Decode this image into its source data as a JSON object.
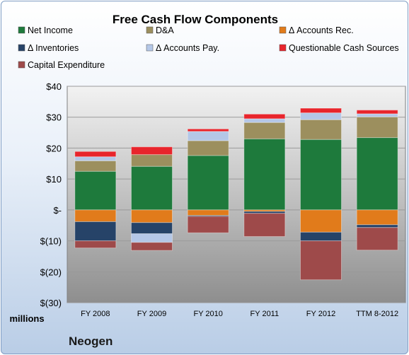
{
  "chart_data": {
    "type": "bar",
    "stacked": true,
    "title": "Free Cash Flow Components",
    "ylabel": "millions",
    "footer": "Neogen",
    "ylim": [
      -30,
      40
    ],
    "yticks": [
      40,
      30,
      20,
      10,
      0,
      -10,
      -20,
      -30
    ],
    "ytick_labels": [
      "$40",
      "$30",
      "$20",
      "$10",
      "$-",
      "$(10)",
      "$(20)",
      "$(30)"
    ],
    "categories": [
      "FY 2008",
      "FY 2009",
      "FY 2010",
      "FY 2011",
      "FY 2012",
      "TTM 8-2012"
    ],
    "legend_position": "top",
    "grid": true,
    "series": [
      {
        "name": "Net Income",
        "color": "#1e7a3c",
        "values": [
          12.5,
          14.1,
          17.6,
          23.0,
          22.8,
          23.4
        ]
      },
      {
        "name": "D&A",
        "color": "#9c8f5e",
        "values": [
          3.4,
          3.8,
          4.8,
          5.3,
          6.4,
          6.7
        ]
      },
      {
        "name": "Δ Accounts Rec.",
        "color": "#e17b1b",
        "values": [
          -3.8,
          -4.1,
          -1.8,
          -0.5,
          -7.2,
          -4.8
        ]
      },
      {
        "name": "Δ Inventories",
        "color": "#264368",
        "values": [
          -6.2,
          -3.6,
          -0.3,
          -0.6,
          -2.8,
          -0.9
        ]
      },
      {
        "name": "Δ Accounts Pay.",
        "color": "#b4c7e7",
        "values": [
          1.3,
          -2.8,
          3.0,
          1.2,
          2.2,
          1.0
        ]
      },
      {
        "name": "Questionable Cash Sources",
        "color": "#e8252c",
        "values": [
          1.7,
          2.5,
          0.8,
          1.5,
          1.5,
          1.2
        ]
      },
      {
        "name": "Capital Expenditure",
        "color": "#9e4a4a",
        "values": [
          -2.3,
          -2.6,
          -5.3,
          -7.5,
          -12.6,
          -7.3
        ]
      }
    ]
  }
}
